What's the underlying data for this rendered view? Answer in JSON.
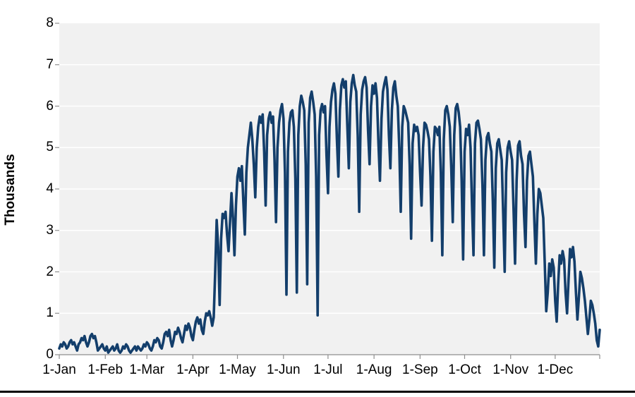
{
  "chart_data": {
    "type": "line",
    "title": "",
    "xlabel": "",
    "ylabel": "Thousands",
    "ylim": [
      0,
      8
    ],
    "y_ticks": [
      0,
      1,
      2,
      3,
      4,
      5,
      6,
      7,
      8
    ],
    "x_unit": "day-of-year (daily series, 365 points)",
    "x_ticks": [
      {
        "label": "1-Jan",
        "day": 1
      },
      {
        "label": "1-Feb",
        "day": 32
      },
      {
        "label": "1-Mar",
        "day": 60
      },
      {
        "label": "1-Apr",
        "day": 91
      },
      {
        "label": "1-May",
        "day": 121
      },
      {
        "label": "1-Jun",
        "day": 152
      },
      {
        "label": "1-Jul",
        "day": 182
      },
      {
        "label": "1-Aug",
        "day": 213
      },
      {
        "label": "1-Sep",
        "day": 244
      },
      {
        "label": "1-Oct",
        "day": 274
      },
      {
        "label": "1-Nov",
        "day": 305
      },
      {
        "label": "1-Dec",
        "day": 335
      }
    ],
    "end_tick_day": 365,
    "grid": true,
    "legend": false,
    "plot_bg_color": "#f1f1f1",
    "gridline_color": "#ffffff",
    "axis_color": "#8e8e8e",
    "series": [
      {
        "name": "daily-value-thousands",
        "color": "#133e6b",
        "values": [
          0.15,
          0.25,
          0.2,
          0.3,
          0.25,
          0.15,
          0.2,
          0.3,
          0.35,
          0.25,
          0.3,
          0.2,
          0.1,
          0.25,
          0.3,
          0.4,
          0.35,
          0.45,
          0.3,
          0.2,
          0.3,
          0.45,
          0.5,
          0.4,
          0.45,
          0.3,
          0.1,
          0.15,
          0.2,
          0.25,
          0.15,
          0.1,
          0.2,
          0.05,
          0.1,
          0.15,
          0.2,
          0.1,
          0.15,
          0.25,
          0.1,
          0.05,
          0.1,
          0.2,
          0.15,
          0.25,
          0.2,
          0.1,
          0.05,
          0.1,
          0.15,
          0.2,
          0.1,
          0.2,
          0.15,
          0.1,
          0.15,
          0.25,
          0.2,
          0.3,
          0.25,
          0.15,
          0.1,
          0.2,
          0.35,
          0.3,
          0.4,
          0.35,
          0.2,
          0.15,
          0.3,
          0.5,
          0.55,
          0.45,
          0.6,
          0.35,
          0.2,
          0.35,
          0.55,
          0.5,
          0.65,
          0.55,
          0.4,
          0.3,
          0.5,
          0.7,
          0.6,
          0.75,
          0.65,
          0.45,
          0.35,
          0.6,
          0.8,
          0.9,
          0.75,
          0.85,
          0.6,
          0.5,
          0.8,
          1.0,
          0.95,
          1.05,
          0.9,
          0.7,
          0.9,
          2.0,
          3.25,
          2.6,
          1.2,
          2.8,
          3.4,
          3.3,
          3.45,
          2.9,
          2.5,
          3.2,
          3.9,
          3.3,
          2.4,
          3.6,
          4.3,
          4.5,
          4.2,
          4.55,
          3.7,
          2.9,
          4.4,
          5.0,
          5.3,
          5.6,
          5.2,
          4.6,
          3.8,
          5.0,
          5.5,
          5.75,
          5.6,
          5.8,
          4.9,
          3.6,
          5.3,
          5.7,
          5.85,
          5.6,
          5.75,
          4.7,
          3.2,
          5.0,
          5.6,
          5.9,
          6.05,
          5.7,
          4.4,
          1.45,
          4.9,
          5.6,
          5.85,
          5.9,
          5.5,
          4.25,
          1.5,
          5.3,
          6.0,
          6.25,
          6.1,
          5.9,
          4.6,
          1.7,
          5.6,
          6.2,
          6.35,
          6.1,
          5.8,
          4.3,
          0.95,
          5.3,
          5.9,
          6.05,
          5.85,
          6.0,
          4.8,
          3.9,
          5.5,
          6.1,
          6.4,
          6.55,
          6.3,
          5.2,
          4.3,
          5.9,
          6.5,
          6.65,
          6.45,
          6.6,
          5.5,
          4.5,
          6.1,
          6.55,
          6.75,
          6.5,
          6.35,
          5.3,
          3.45,
          5.8,
          6.4,
          6.6,
          6.7,
          6.45,
          5.4,
          4.6,
          6.0,
          6.5,
          6.3,
          6.55,
          6.2,
          5.1,
          4.2,
          5.7,
          6.35,
          6.55,
          6.7,
          6.4,
          5.3,
          4.5,
          5.9,
          6.45,
          6.6,
          6.25,
          6.0,
          5.0,
          3.45,
          5.5,
          6.0,
          5.9,
          5.75,
          5.6,
          4.6,
          2.8,
          5.1,
          5.55,
          5.4,
          5.5,
          5.3,
          4.4,
          3.6,
          5.0,
          5.6,
          5.55,
          5.4,
          5.2,
          4.3,
          2.75,
          4.9,
          5.5,
          5.45,
          5.3,
          5.5,
          4.4,
          2.4,
          5.2,
          5.9,
          6.0,
          5.8,
          5.5,
          4.5,
          3.2,
          5.3,
          5.95,
          6.05,
          5.85,
          5.5,
          4.2,
          2.3,
          4.9,
          5.45,
          5.3,
          5.55,
          5.0,
          3.6,
          2.4,
          5.1,
          5.6,
          5.65,
          5.45,
          5.2,
          4.1,
          2.4,
          4.7,
          5.25,
          5.35,
          5.1,
          4.9,
          3.7,
          2.1,
          4.5,
          5.1,
          5.2,
          4.95,
          4.7,
          3.4,
          2.0,
          4.4,
          5.0,
          5.15,
          4.9,
          4.7,
          3.5,
          2.2,
          4.2,
          5.05,
          5.15,
          4.8,
          4.6,
          3.4,
          2.6,
          4.2,
          4.8,
          4.9,
          4.6,
          4.3,
          3.2,
          2.2,
          3.4,
          4.0,
          3.9,
          3.6,
          3.3,
          2.2,
          1.05,
          1.5,
          2.2,
          1.9,
          2.3,
          2.1,
          1.3,
          0.8,
          1.7,
          2.4,
          2.2,
          2.5,
          2.3,
          1.5,
          1.0,
          1.8,
          2.55,
          2.35,
          2.6,
          2.25,
          1.5,
          0.85,
          1.4,
          2.0,
          1.85,
          1.6,
          1.3,
          0.9,
          0.5,
          0.85,
          1.3,
          1.2,
          1.0,
          0.75,
          0.35,
          0.2,
          0.6
        ]
      }
    ]
  },
  "footer": {
    "bar_color": "#000000"
  }
}
